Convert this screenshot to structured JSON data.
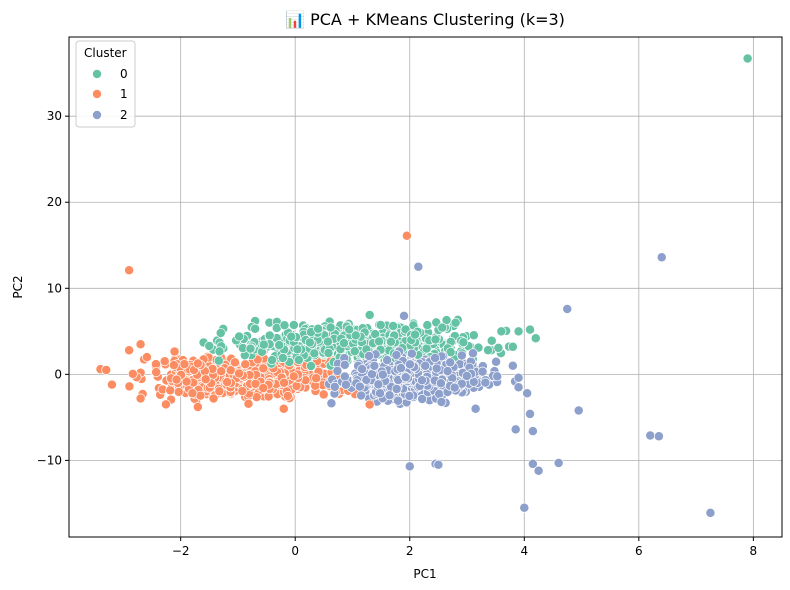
{
  "chart_data": {
    "type": "scatter",
    "title": "📊 PCA + KMeans Clustering (k=3)",
    "xlabel": "PC1",
    "ylabel": "PC2",
    "xlim": [
      -3.95,
      8.5
    ],
    "ylim": [
      -18.9,
      39.2
    ],
    "xticks": [
      -2,
      0,
      2,
      4,
      6,
      8
    ],
    "xtick_labels": [
      "−2",
      "0",
      "2",
      "4",
      "6",
      "8"
    ],
    "yticks": [
      -10,
      0,
      10,
      20,
      30
    ],
    "ytick_labels": [
      "−10",
      "0",
      "10",
      "20",
      "30"
    ],
    "grid": true,
    "legend": {
      "title": "Cluster",
      "placement": "top-left",
      "labels": [
        "0",
        "1",
        "2"
      ]
    },
    "colors": {
      "0": "#66c2a5",
      "1": "#fc8d62",
      "2": "#8da0cb"
    },
    "bulk_clusters": [
      {
        "cluster": "1",
        "x_range": [
          -3.4,
          1.6
        ],
        "y_range": [
          -4.0,
          3.6
        ],
        "count": 520
      },
      {
        "cluster": "0",
        "x_range": [
          -2.0,
          4.2
        ],
        "y_range": [
          0.5,
          6.9
        ],
        "count": 520
      },
      {
        "cluster": "2",
        "x_range": [
          0.2,
          3.9
        ],
        "y_range": [
          -4.0,
          3.2
        ],
        "count": 520
      }
    ],
    "series": [
      {
        "name": "0",
        "points": [
          [
            7.9,
            36.7
          ],
          [
            -1.6,
            3.7
          ],
          [
            -1.5,
            3.3
          ],
          [
            -1.3,
            4.8
          ],
          [
            4.1,
            5.2
          ],
          [
            4.2,
            4.2
          ],
          [
            1.3,
            6.9
          ],
          [
            2.8,
            6.0
          ],
          [
            3.6,
            5.0
          ],
          [
            0.4,
            5.3
          ],
          [
            -0.7,
            5.3
          ],
          [
            3.9,
            5.0
          ],
          [
            3.8,
            3.2
          ]
        ]
      },
      {
        "name": "1",
        "points": [
          [
            -2.9,
            12.1
          ],
          [
            1.95,
            16.1
          ],
          [
            -3.4,
            0.6
          ],
          [
            -3.2,
            -1.2
          ],
          [
            -2.7,
            3.5
          ],
          [
            -2.7,
            -2.8
          ],
          [
            -1.7,
            -3.8
          ],
          [
            -0.2,
            -4.0
          ],
          [
            1.3,
            -3.5
          ],
          [
            -2.9,
            2.8
          ],
          [
            -3.3,
            0.5
          ]
        ]
      },
      {
        "name": "2",
        "points": [
          [
            2.15,
            12.5
          ],
          [
            1.9,
            6.8
          ],
          [
            6.4,
            13.6
          ],
          [
            4.75,
            7.6
          ],
          [
            4.05,
            -2.2
          ],
          [
            4.1,
            -4.6
          ],
          [
            4.15,
            -6.6
          ],
          [
            3.85,
            -6.4
          ],
          [
            4.95,
            -4.2
          ],
          [
            4.15,
            -10.4
          ],
          [
            4.25,
            -11.2
          ],
          [
            4.6,
            -10.3
          ],
          [
            6.2,
            -7.1
          ],
          [
            6.35,
            -7.2
          ],
          [
            7.25,
            -16.1
          ],
          [
            4.0,
            -15.5
          ],
          [
            2.0,
            -10.7
          ],
          [
            2.45,
            -10.4
          ],
          [
            2.5,
            -10.5
          ],
          [
            3.15,
            -4.0
          ],
          [
            3.8,
            1.0
          ],
          [
            3.9,
            -1.5
          ],
          [
            3.9,
            -0.4
          ]
        ]
      }
    ]
  }
}
